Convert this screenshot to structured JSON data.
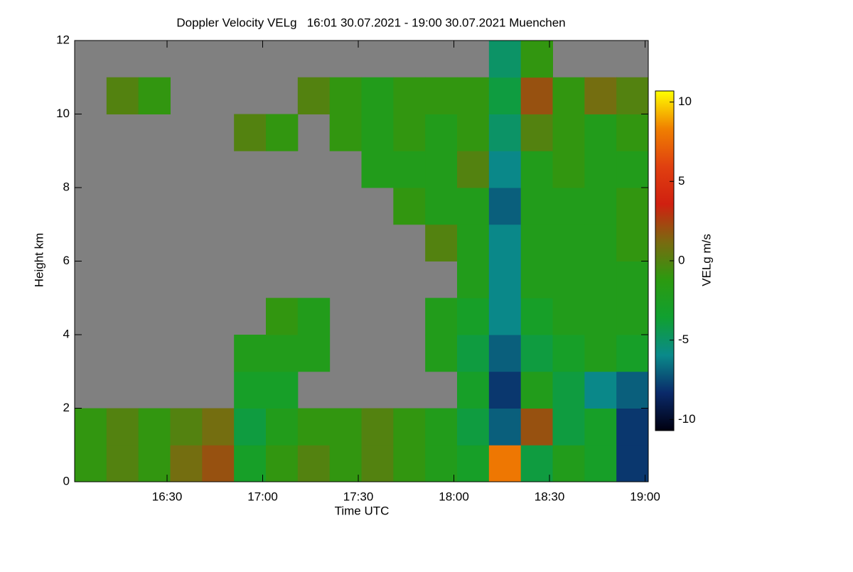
{
  "chart_data": {
    "type": "heatmap",
    "title": "Doppler Velocity VELg   16:01 30.07.2021 - 19:00 30.07.2021 Muenchen",
    "xlabel": "Time UTC",
    "ylabel": "Height km",
    "colorbar_label": "VELg m/s",
    "x": [
      961,
      971,
      981,
      991,
      1001,
      1011,
      1021,
      1031,
      1041,
      1051,
      1061,
      1071,
      1081,
      1091,
      1101,
      1111,
      1121,
      1131,
      1141
    ],
    "y": [
      0,
      1,
      2,
      3,
      4,
      5,
      6,
      7,
      8,
      9,
      10,
      11,
      12
    ],
    "xlim": [
      961,
      1141
    ],
    "xticks": [
      {
        "value": 990,
        "label": "16:30"
      },
      {
        "value": 1020,
        "label": "17:00"
      },
      {
        "value": 1050,
        "label": "17:30"
      },
      {
        "value": 1080,
        "label": "18:00"
      },
      {
        "value": 1110,
        "label": "18:30"
      },
      {
        "value": 1140,
        "label": "19:00"
      }
    ],
    "ylim": [
      0,
      12
    ],
    "yticks": [
      0,
      2,
      4,
      6,
      8,
      10,
      12
    ],
    "clim": [
      -10.7,
      10.7
    ],
    "cticks": [
      -10,
      -5,
      0,
      5,
      10
    ],
    "colormap": [
      "#000010",
      "#0a2a6a",
      "#0a8a8a",
      "#10a030",
      "#2c9a10",
      "#7a6a10",
      "#d02010",
      "#e04010",
      "#f08000",
      "#ffff00"
    ],
    "background": "#808080",
    "values": [
      [
        -1,
        0,
        -1,
        1,
        2,
        -3,
        -1,
        0,
        -1,
        0,
        -1,
        -2,
        -3,
        8,
        -4,
        -2,
        -3,
        -8
      ],
      [
        -1,
        0,
        -1,
        0,
        1,
        -4,
        -2,
        -1,
        -1,
        0,
        -1,
        -2,
        -4,
        -7,
        2,
        -4,
        -3,
        -8
      ],
      [
        null,
        null,
        null,
        null,
        null,
        -3,
        -3,
        null,
        null,
        null,
        null,
        null,
        -3,
        -8,
        -2,
        -4,
        -6,
        -7
      ],
      [
        null,
        null,
        null,
        null,
        null,
        -2,
        -2,
        -2,
        null,
        null,
        null,
        -2,
        -4,
        -7,
        -4,
        -3,
        -2,
        -3
      ],
      [
        null,
        null,
        null,
        null,
        null,
        null,
        -1,
        -2,
        null,
        null,
        null,
        -2,
        -3,
        -6,
        -3,
        -2,
        -2,
        -2
      ],
      [
        null,
        null,
        null,
        null,
        null,
        null,
        null,
        null,
        null,
        null,
        null,
        null,
        -2,
        -6,
        -2,
        -2,
        -2,
        -2
      ],
      [
        null,
        null,
        null,
        null,
        null,
        null,
        null,
        null,
        null,
        null,
        null,
        0,
        -2,
        -6,
        -2,
        -2,
        -2,
        -1
      ],
      [
        null,
        null,
        null,
        null,
        null,
        null,
        null,
        null,
        null,
        null,
        -1,
        -2,
        -2,
        -7,
        -2,
        -2,
        -2,
        -1
      ],
      [
        null,
        null,
        null,
        null,
        null,
        null,
        null,
        null,
        null,
        -2,
        -2,
        -2,
        0,
        -6,
        -2,
        -1,
        -2,
        -2
      ],
      [
        null,
        null,
        null,
        null,
        null,
        0,
        -1,
        null,
        -1,
        -2,
        -1,
        -2,
        -1,
        -5,
        0,
        -1,
        -2,
        -1
      ],
      [
        null,
        0,
        -1,
        null,
        null,
        null,
        null,
        0,
        -1,
        -2,
        -1,
        -1,
        -1,
        -4,
        2,
        -1,
        1,
        0
      ],
      [
        null,
        null,
        null,
        null,
        null,
        null,
        null,
        null,
        null,
        null,
        null,
        null,
        null,
        -5,
        -1,
        null,
        null,
        null
      ]
    ]
  }
}
